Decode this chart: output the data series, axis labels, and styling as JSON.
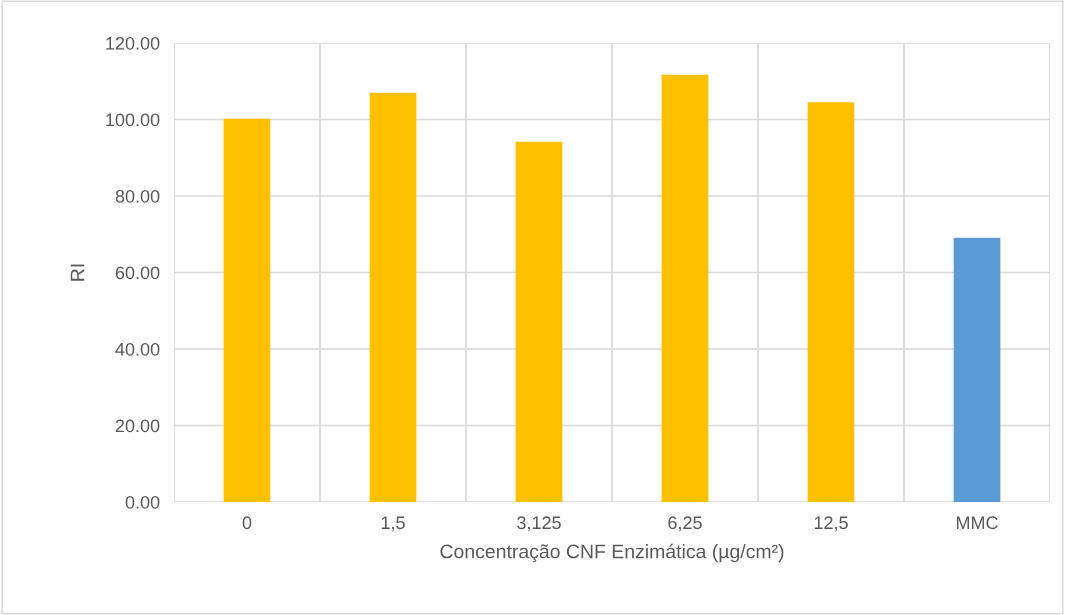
{
  "chart_data": {
    "type": "bar",
    "xlabel": "Concentração CNF Enzimática (µg/cm²)",
    "ylabel": "RI",
    "categories": [
      "0",
      "1,5",
      "3,125",
      "6,25",
      "12,5",
      "MMC"
    ],
    "values": [
      100.2,
      107.0,
      94.2,
      111.7,
      104.5,
      69.1
    ],
    "colors": [
      "#ffc000",
      "#ffc000",
      "#ffc000",
      "#ffc000",
      "#ffc000",
      "#5b9bd5"
    ],
    "ylim": [
      0,
      120
    ],
    "yticks": [
      {
        "value": 0,
        "label": "0.00"
      },
      {
        "value": 20,
        "label": "20.00"
      },
      {
        "value": 40,
        "label": "40.00"
      },
      {
        "value": 60,
        "label": "60.00"
      },
      {
        "value": 80,
        "label": "80.00"
      },
      {
        "value": 100,
        "label": "100.00"
      },
      {
        "value": 120,
        "label": "120.00"
      }
    ],
    "grid": true
  }
}
